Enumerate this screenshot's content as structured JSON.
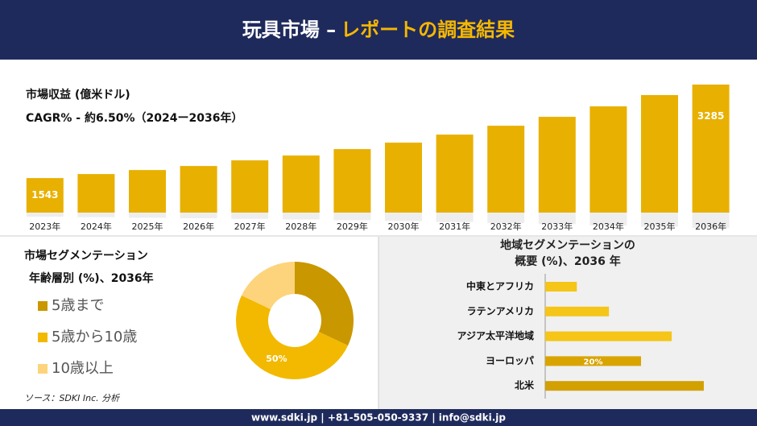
{
  "header": {
    "title": "玩具市場 –",
    "title_highlight": "レポートの調査結果"
  },
  "chart_data": [
    {
      "type": "bar",
      "subtitle": "市場収益 (億米ドル)",
      "annotation": "CAGR% - 約6.50%（2024ー2036年）",
      "categories": [
        "2023年",
        "2024年",
        "2025年",
        "2026年",
        "2027年",
        "2028年",
        "2029年",
        "2030年",
        "2031年",
        "2032年",
        "2033年",
        "2034年",
        "2035年",
        "2036年"
      ],
      "values": [
        1543,
        1618,
        1693,
        1768,
        1873,
        1963,
        2083,
        2203,
        2353,
        2518,
        2684,
        2879,
        3089,
        3285
      ],
      "value_labels": [
        "1543",
        null,
        null,
        null,
        null,
        null,
        null,
        null,
        null,
        null,
        null,
        null,
        null,
        "3285"
      ],
      "color": "#e8b000",
      "ylim": [
        900,
        3300
      ]
    },
    {
      "type": "pie",
      "title": "市場セグメンテーション",
      "subtitle": "年齢層別 (%)、2036年",
      "categories": [
        "5歳まで",
        "5歳から10歳",
        "10歳以上"
      ],
      "values": [
        32,
        50,
        18
      ],
      "value_labels": [
        null,
        "50%",
        null
      ],
      "colors": [
        "#c99700",
        "#f2b900",
        "#fdd47c"
      ]
    },
    {
      "type": "barh",
      "title": [
        "地域セグメンテーションの",
        "概要 (%)、2036 年"
      ],
      "categories": [
        "中東とアフリカ",
        "ラテンアメリカ",
        "アジア太平洋地域",
        "ヨーロッパ",
        "北米"
      ],
      "values": [
        6.6,
        13.3,
        26.4,
        20,
        33.1
      ],
      "value_labels": [
        null,
        null,
        null,
        "20%",
        null
      ],
      "colors": [
        "#f5c518",
        "#f5c518",
        "#f5c518",
        "#d9a400",
        "#d2a000"
      ],
      "xlim": [
        0,
        40
      ]
    }
  ],
  "source": "ソース：SDKI Inc. 分析",
  "footer": "www.sdki.jp | +81-505-050-9337 | info@sdki.jp"
}
